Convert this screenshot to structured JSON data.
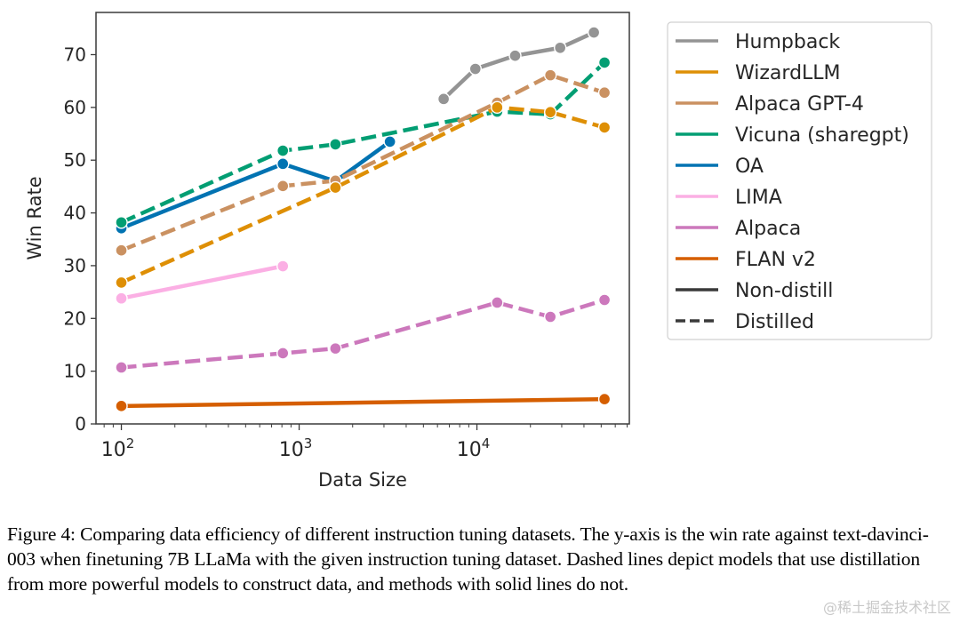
{
  "chart_data": {
    "type": "line",
    "title": "",
    "xlabel": "Data Size",
    "ylabel": "Win Rate",
    "xscale": "log",
    "xlim": [
      72,
      72000
    ],
    "ylim": [
      0,
      78
    ],
    "x_ticks": [
      {
        "value": 100,
        "base": "10",
        "exp": "2"
      },
      {
        "value": 1000,
        "base": "10",
        "exp": "3"
      },
      {
        "value": 10000,
        "base": "10",
        "exp": "4"
      }
    ],
    "y_ticks": [
      0,
      10,
      20,
      30,
      40,
      50,
      60,
      70
    ],
    "grid": false,
    "legend_position": "outside-right-top",
    "series": [
      {
        "name": "Humpback",
        "color": "#949494",
        "style": "solid",
        "x": [
          6500,
          9800,
          16400,
          29400,
          45500
        ],
        "y": [
          61.6,
          67.3,
          69.8,
          71.3,
          74.2
        ]
      },
      {
        "name": "WizardLLM",
        "color": "#de8f05",
        "style": "dashed",
        "x": [
          100,
          1600,
          13000,
          25900,
          52200
        ],
        "y": [
          26.8,
          44.8,
          60.0,
          59.1,
          56.2
        ]
      },
      {
        "name": "Alpaca GPT-4",
        "color": "#ca9161",
        "style": "dashed",
        "x": [
          100,
          810,
          1600,
          13000,
          25900,
          52200
        ],
        "y": [
          32.9,
          45.1,
          46.1,
          60.9,
          66.1,
          62.8
        ]
      },
      {
        "name": "Vicuna (sharegpt)",
        "color": "#029e73",
        "style": "dashed",
        "x": [
          100,
          810,
          1600,
          13000,
          25900,
          52200
        ],
        "y": [
          38.2,
          51.8,
          53.0,
          59.2,
          58.7,
          68.5
        ]
      },
      {
        "name": "OA",
        "color": "#0173b2",
        "style": "solid",
        "x": [
          100,
          810,
          1600,
          3240
        ],
        "y": [
          37.1,
          49.3,
          46.0,
          53.5
        ]
      },
      {
        "name": "LIMA",
        "color": "#fbafe4",
        "style": "solid",
        "x": [
          100,
          810
        ],
        "y": [
          23.8,
          29.9
        ]
      },
      {
        "name": "Alpaca",
        "color": "#cc78bc",
        "style": "dashed",
        "x": [
          100,
          810,
          1600,
          13000,
          25900,
          52200
        ],
        "y": [
          10.7,
          13.4,
          14.3,
          23.0,
          20.3,
          23.5
        ]
      },
      {
        "name": "FLAN v2",
        "color": "#d55e00",
        "style": "solid",
        "x": [
          100,
          52200
        ],
        "y": [
          3.4,
          4.7
        ]
      }
    ],
    "legend_entries": [
      {
        "label": "Humpback",
        "color": "#949494",
        "style": "solid"
      },
      {
        "label": "WizardLLM",
        "color": "#de8f05",
        "style": "solid"
      },
      {
        "label": "Alpaca GPT-4",
        "color": "#ca9161",
        "style": "solid"
      },
      {
        "label": "Vicuna (sharegpt)",
        "color": "#029e73",
        "style": "solid"
      },
      {
        "label": "OA",
        "color": "#0173b2",
        "style": "solid"
      },
      {
        "label": "LIMA",
        "color": "#fbafe4",
        "style": "solid"
      },
      {
        "label": "Alpaca",
        "color": "#cc78bc",
        "style": "solid"
      },
      {
        "label": "FLAN v2",
        "color": "#d55e00",
        "style": "solid"
      },
      {
        "label": "Non-distill",
        "color": "#3a3a3a",
        "style": "solid"
      },
      {
        "label": "Distilled",
        "color": "#3a3a3a",
        "style": "dashed"
      }
    ]
  },
  "caption": "Figure 4: Comparing data efficiency of different instruction tuning datasets. The y-axis is the win rate against text-davinci-003 when finetuning 7B LLaMa with the given instruction tuning dataset. Dashed lines depict models that use distillation from more powerful models to construct data, and methods with solid lines do not.",
  "watermark": "@稀土掘金技术社区"
}
